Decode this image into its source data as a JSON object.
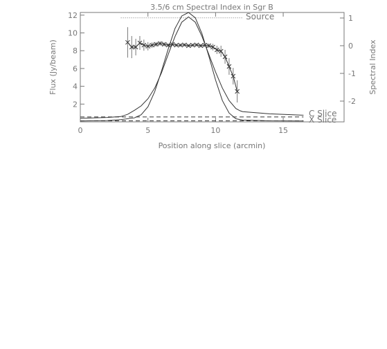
{
  "chart_data": {
    "type": "line",
    "title": "3.5/6 cm Spectral Index in Sgr B",
    "xlabel": "Position along slice (arcmin)",
    "ylabel_left": "Flux (Jy/beam)",
    "ylabel_right": "Spectral Index",
    "xlim": [
      0,
      19.5
    ],
    "ylim_left": [
      0,
      12.3
    ],
    "ylim_right": [
      -2.75,
      1.2
    ],
    "x_ticks": [
      0,
      5,
      10,
      15
    ],
    "y_ticks_left": [
      2,
      4,
      6,
      8,
      10,
      12
    ],
    "y_ticks_right": [
      -2,
      -1,
      0,
      1
    ],
    "annotations": {
      "source_label": "Source",
      "c_slice_label": "C Slice",
      "x_slice_label": "X Slice"
    },
    "source_extent": [
      3.0,
      12.0
    ],
    "source_level": 11.7,
    "series": [
      {
        "name": "C Slice",
        "style": "solid",
        "x": [
          0,
          2,
          3,
          3.5,
          4,
          4.5,
          5,
          5.5,
          6,
          6.5,
          7,
          7.5,
          8,
          8.5,
          9,
          9.5,
          10,
          10.5,
          11,
          11.5,
          11.8,
          12,
          14,
          16.5
        ],
        "y": [
          0.4,
          0.5,
          0.6,
          0.85,
          1.3,
          1.8,
          2.6,
          3.8,
          5.5,
          7.6,
          9.6,
          11.2,
          11.8,
          11.2,
          9.6,
          7.6,
          5.6,
          3.8,
          2.4,
          1.5,
          1.25,
          1.15,
          0.9,
          0.75
        ]
      },
      {
        "name": "X Slice",
        "style": "solid",
        "x": [
          0,
          2,
          3,
          4,
          4.5,
          5,
          5.5,
          6,
          6.5,
          7,
          7.5,
          8,
          8.5,
          9,
          9.5,
          10,
          10.5,
          11,
          11.5,
          12,
          14,
          16.5
        ],
        "y": [
          0.1,
          0.15,
          0.25,
          0.45,
          0.8,
          1.7,
          3.4,
          5.7,
          8.2,
          10.5,
          11.9,
          12.3,
          11.7,
          9.9,
          7.4,
          4.7,
          2.4,
          1.0,
          0.35,
          0.2,
          0.12,
          0.1
        ]
      },
      {
        "name": "C Slice baseline",
        "style": "dashed",
        "x": [
          0,
          16.5
        ],
        "y": [
          0.55,
          0.55
        ]
      },
      {
        "name": "X Slice baseline",
        "style": "dashed",
        "x": [
          0,
          16.5
        ],
        "y": [
          0.12,
          0.12
        ]
      }
    ],
    "spectral_index": {
      "axis": "right",
      "x": [
        3.5,
        3.8,
        4.1,
        4.4,
        4.7,
        5.0,
        5.3,
        5.6,
        5.9,
        6.2,
        6.5,
        6.8,
        7.1,
        7.4,
        7.7,
        8.0,
        8.3,
        8.6,
        8.9,
        9.2,
        9.5,
        9.8,
        10.1,
        10.4,
        10.7,
        11.0,
        11.3,
        11.6
      ],
      "y": [
        0.12,
        -0.05,
        -0.05,
        0.1,
        0.02,
        -0.02,
        0.02,
        0.05,
        0.08,
        0.05,
        0.02,
        0.05,
        0.02,
        0.02,
        0.03,
        0.0,
        0.02,
        0.03,
        0.0,
        0.02,
        0.0,
        -0.05,
        -0.15,
        -0.2,
        -0.4,
        -0.75,
        -1.1,
        -1.65
      ],
      "err": [
        0.55,
        0.4,
        0.3,
        0.25,
        0.2,
        0.15,
        0.1,
        0.08,
        0.08,
        0.07,
        0.06,
        0.06,
        0.05,
        0.05,
        0.05,
        0.05,
        0.05,
        0.05,
        0.06,
        0.07,
        0.08,
        0.12,
        0.15,
        0.2,
        0.25,
        0.3,
        0.3,
        0.4
      ]
    }
  }
}
